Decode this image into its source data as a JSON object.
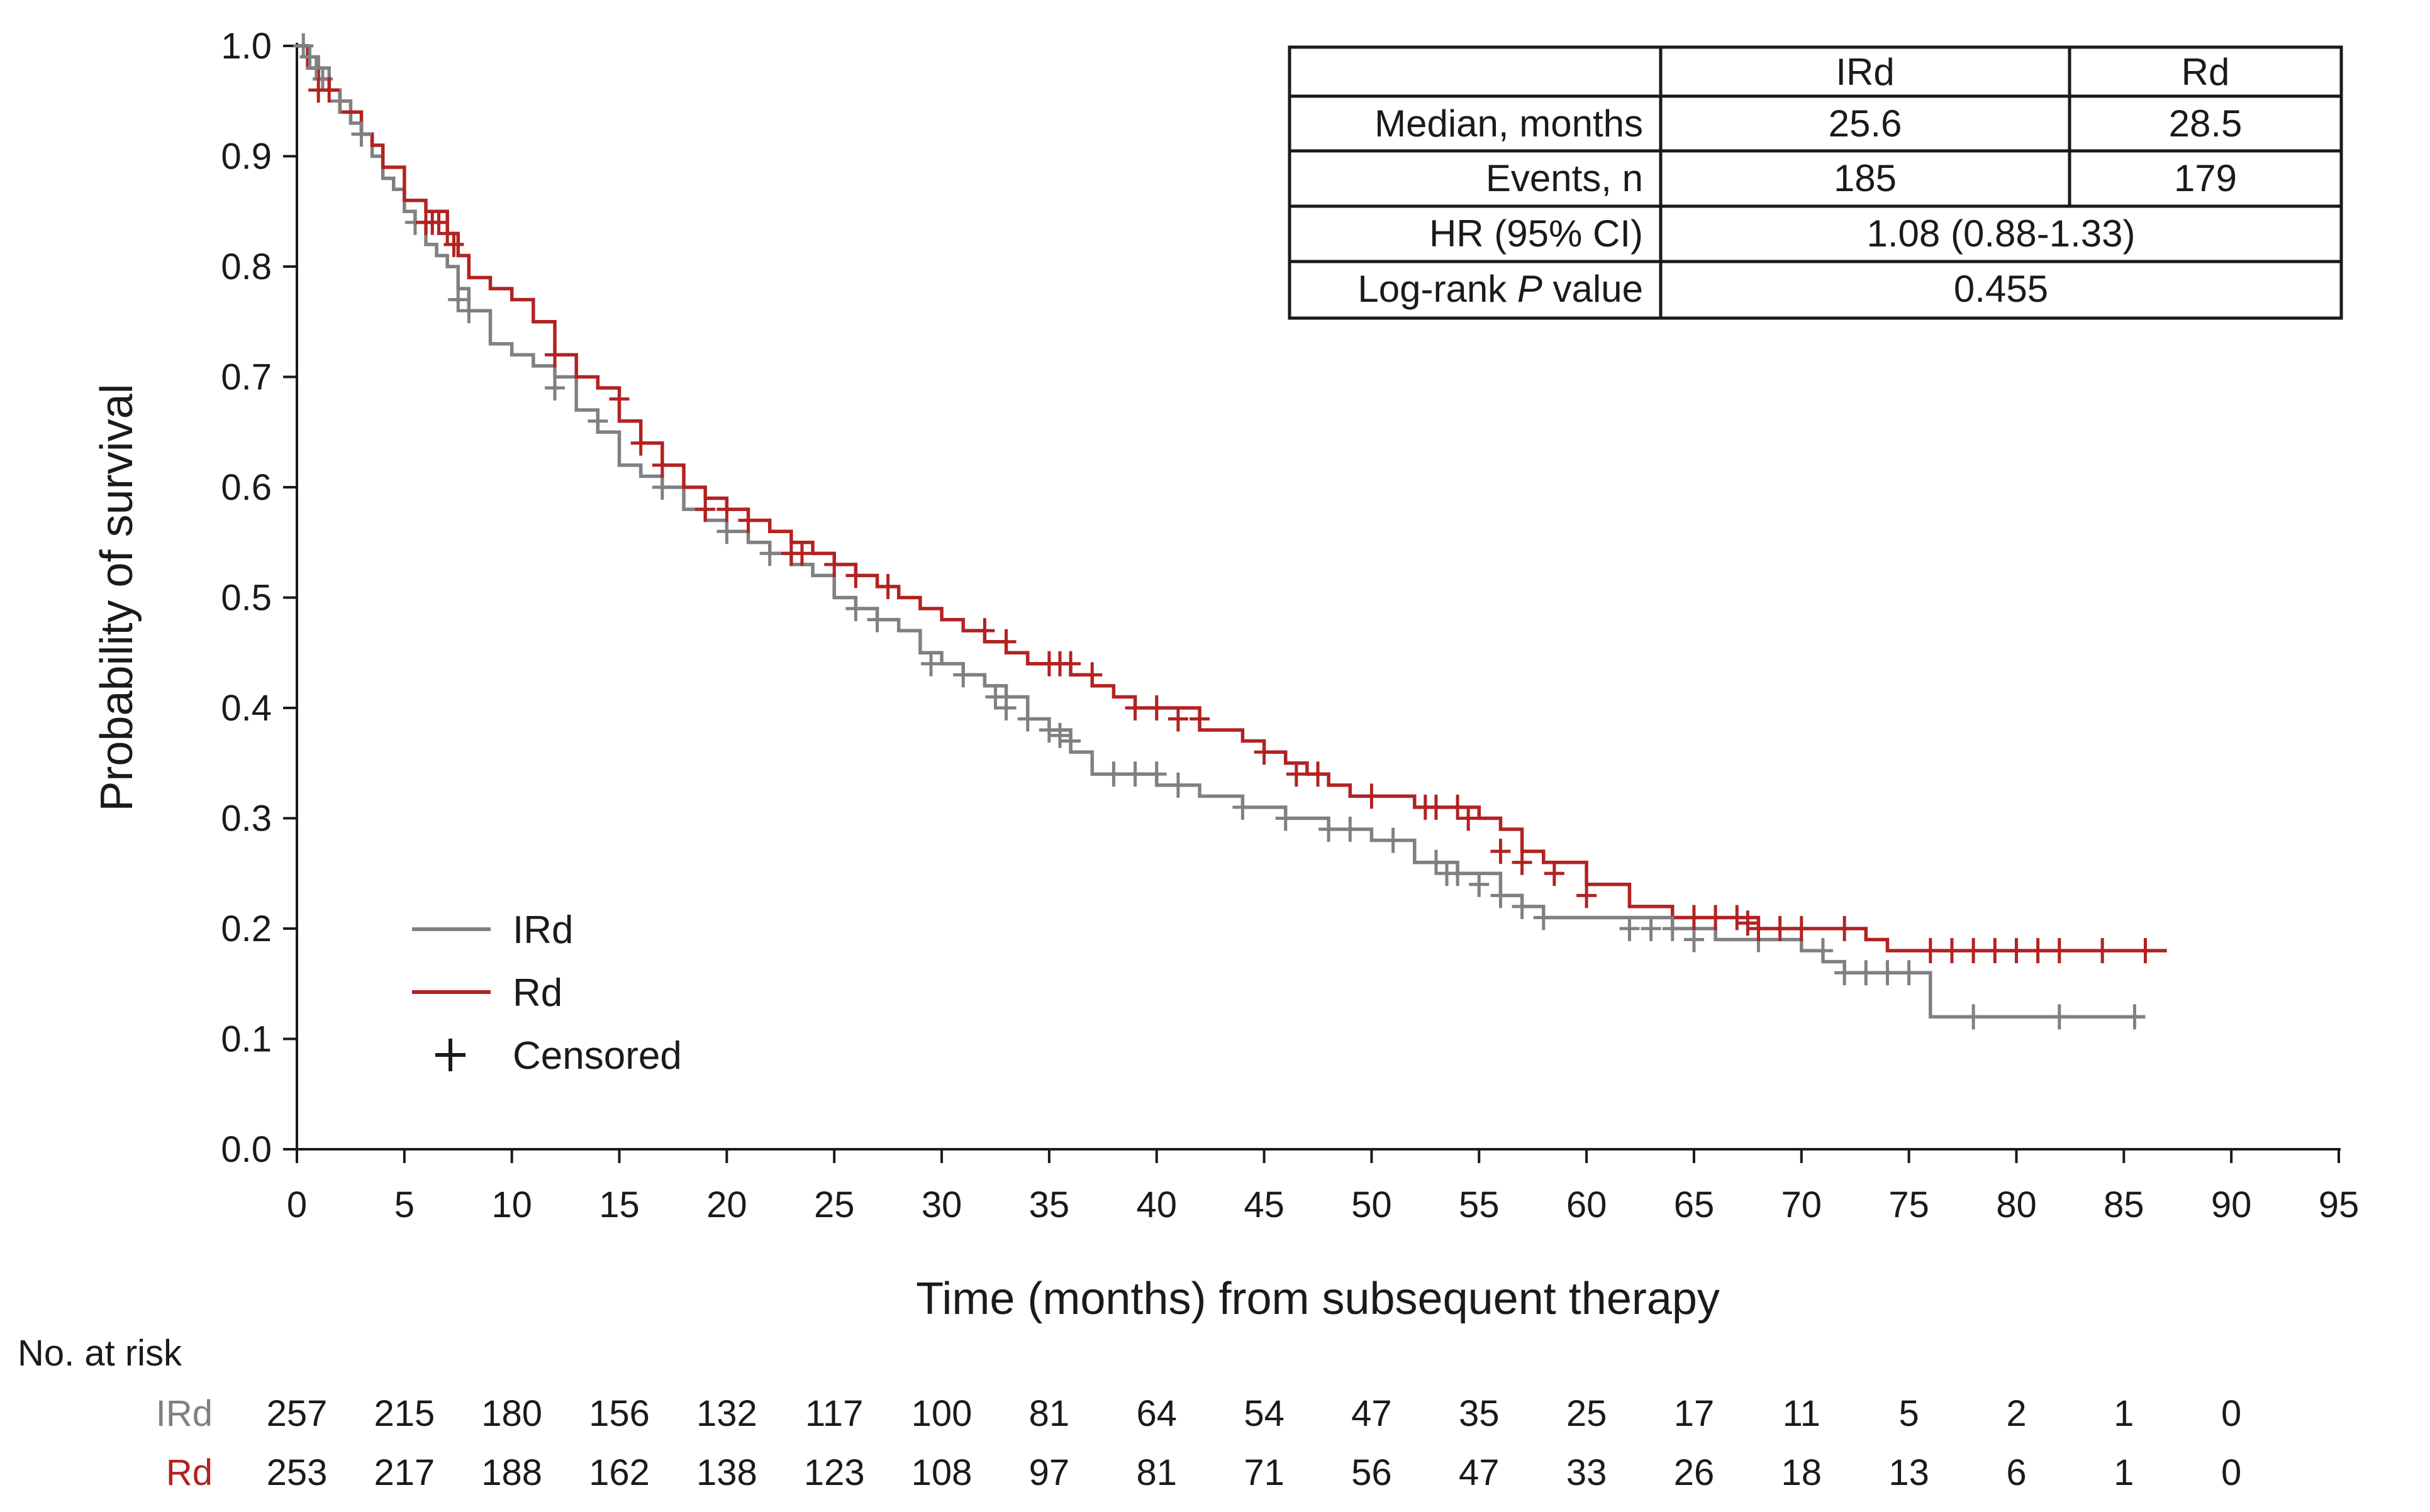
{
  "chart_data": {
    "type": "line",
    "subtype": "kaplan-meier",
    "xlabel": "Time (months) from subsequent therapy",
    "ylabel": "Probability of survival",
    "xlim": [
      0,
      95
    ],
    "ylim": [
      0,
      1
    ],
    "x_ticks": [
      "0",
      "5",
      "10",
      "15",
      "20",
      "25",
      "30",
      "35",
      "40",
      "45",
      "50",
      "55",
      "60",
      "65",
      "70",
      "75",
      "80",
      "85",
      "90",
      "95"
    ],
    "y_ticks": [
      "0.0",
      "0.1",
      "0.2",
      "0.3",
      "0.4",
      "0.5",
      "0.6",
      "0.7",
      "0.8",
      "0.9",
      "1.0"
    ],
    "legend": {
      "position": "bottom-left",
      "items": [
        {
          "label": "IRd",
          "kind": "line",
          "color": "#808080"
        },
        {
          "label": "Rd",
          "kind": "line",
          "color": "#b22222"
        },
        {
          "label": "Censored",
          "kind": "plus",
          "color": "#1a1a1a"
        }
      ]
    },
    "series": [
      {
        "name": "IRd",
        "color": "#808080",
        "steps": [
          [
            0,
            1.0
          ],
          [
            0.5,
            0.99
          ],
          [
            1,
            0.98
          ],
          [
            1.5,
            0.96
          ],
          [
            2,
            0.95
          ],
          [
            2.5,
            0.93
          ],
          [
            3,
            0.92
          ],
          [
            3.5,
            0.9
          ],
          [
            4,
            0.88
          ],
          [
            4.5,
            0.87
          ],
          [
            5,
            0.85
          ],
          [
            5.5,
            0.84
          ],
          [
            6,
            0.82
          ],
          [
            6.5,
            0.81
          ],
          [
            7,
            0.8
          ],
          [
            7.5,
            0.78
          ],
          [
            8,
            0.76
          ],
          [
            9,
            0.73
          ],
          [
            10,
            0.72
          ],
          [
            11,
            0.71
          ],
          [
            12,
            0.7
          ],
          [
            13,
            0.67
          ],
          [
            14,
            0.65
          ],
          [
            15,
            0.62
          ],
          [
            16,
            0.61
          ],
          [
            17,
            0.6
          ],
          [
            18,
            0.58
          ],
          [
            19,
            0.57
          ],
          [
            20,
            0.56
          ],
          [
            21,
            0.55
          ],
          [
            22,
            0.54
          ],
          [
            23,
            0.53
          ],
          [
            24,
            0.52
          ],
          [
            25,
            0.5
          ],
          [
            26,
            0.49
          ],
          [
            27,
            0.48
          ],
          [
            28,
            0.47
          ],
          [
            29,
            0.45
          ],
          [
            30,
            0.44
          ],
          [
            31,
            0.43
          ],
          [
            32,
            0.42
          ],
          [
            33,
            0.41
          ],
          [
            34,
            0.39
          ],
          [
            35,
            0.38
          ],
          [
            36,
            0.36
          ],
          [
            37,
            0.34
          ],
          [
            38,
            0.34
          ],
          [
            40,
            0.33
          ],
          [
            42,
            0.32
          ],
          [
            44,
            0.31
          ],
          [
            46,
            0.3
          ],
          [
            48,
            0.29
          ],
          [
            50,
            0.28
          ],
          [
            52,
            0.26
          ],
          [
            54,
            0.25
          ],
          [
            56,
            0.23
          ],
          [
            57,
            0.22
          ],
          [
            58,
            0.21
          ],
          [
            60,
            0.21
          ],
          [
            64,
            0.2
          ],
          [
            66,
            0.19
          ],
          [
            70,
            0.18
          ],
          [
            71,
            0.17
          ],
          [
            72,
            0.16
          ],
          [
            75,
            0.16
          ],
          [
            76,
            0.12
          ],
          [
            86,
            0.12
          ]
        ],
        "censored": [
          [
            0.3,
            1.0
          ],
          [
            0.6,
            0.99
          ],
          [
            0.9,
            0.98
          ],
          [
            1.2,
            0.97
          ],
          [
            2,
            0.95
          ],
          [
            3,
            0.92
          ],
          [
            5.5,
            0.84
          ],
          [
            7.5,
            0.77
          ],
          [
            8,
            0.76
          ],
          [
            12,
            0.69
          ],
          [
            14,
            0.66
          ],
          [
            17,
            0.6
          ],
          [
            20,
            0.56
          ],
          [
            22,
            0.54
          ],
          [
            26,
            0.49
          ],
          [
            27,
            0.48
          ],
          [
            29.5,
            0.44
          ],
          [
            31,
            0.43
          ],
          [
            32.5,
            0.41
          ],
          [
            33,
            0.4
          ],
          [
            34,
            0.39
          ],
          [
            35,
            0.38
          ],
          [
            35.5,
            0.375
          ],
          [
            36,
            0.37
          ],
          [
            38,
            0.34
          ],
          [
            39,
            0.34
          ],
          [
            40,
            0.34
          ],
          [
            41,
            0.33
          ],
          [
            44,
            0.31
          ],
          [
            46,
            0.3
          ],
          [
            48,
            0.29
          ],
          [
            49,
            0.29
          ],
          [
            51,
            0.28
          ],
          [
            53,
            0.26
          ],
          [
            53.5,
            0.25
          ],
          [
            54,
            0.25
          ],
          [
            55,
            0.24
          ],
          [
            56,
            0.23
          ],
          [
            57,
            0.22
          ],
          [
            58,
            0.21
          ],
          [
            62,
            0.2
          ],
          [
            63,
            0.2
          ],
          [
            64,
            0.2
          ],
          [
            65,
            0.19
          ],
          [
            68,
            0.19
          ],
          [
            71,
            0.18
          ],
          [
            72,
            0.16
          ],
          [
            73,
            0.16
          ],
          [
            74,
            0.16
          ],
          [
            75,
            0.16
          ],
          [
            78,
            0.12
          ],
          [
            82,
            0.12
          ],
          [
            85.5,
            0.12
          ]
        ]
      },
      {
        "name": "Rd",
        "color": "#b22222",
        "steps": [
          [
            0,
            1.0
          ],
          [
            0.5,
            0.98
          ],
          [
            1,
            0.97
          ],
          [
            1.5,
            0.96
          ],
          [
            2,
            0.94
          ],
          [
            3,
            0.92
          ],
          [
            3.5,
            0.91
          ],
          [
            4,
            0.89
          ],
          [
            5,
            0.86
          ],
          [
            6,
            0.85
          ],
          [
            7,
            0.83
          ],
          [
            7.5,
            0.81
          ],
          [
            8,
            0.79
          ],
          [
            9,
            0.78
          ],
          [
            10,
            0.77
          ],
          [
            11,
            0.75
          ],
          [
            12,
            0.72
          ],
          [
            13,
            0.7
          ],
          [
            14,
            0.69
          ],
          [
            15,
            0.66
          ],
          [
            16,
            0.64
          ],
          [
            17,
            0.62
          ],
          [
            18,
            0.6
          ],
          [
            19,
            0.59
          ],
          [
            20,
            0.58
          ],
          [
            21,
            0.57
          ],
          [
            22,
            0.56
          ],
          [
            23,
            0.55
          ],
          [
            24,
            0.54
          ],
          [
            25,
            0.53
          ],
          [
            26,
            0.52
          ],
          [
            27,
            0.51
          ],
          [
            28,
            0.5
          ],
          [
            29,
            0.49
          ],
          [
            30,
            0.48
          ],
          [
            31,
            0.47
          ],
          [
            32,
            0.46
          ],
          [
            33,
            0.45
          ],
          [
            34,
            0.44
          ],
          [
            35,
            0.44
          ],
          [
            36,
            0.43
          ],
          [
            37,
            0.42
          ],
          [
            38,
            0.41
          ],
          [
            39,
            0.4
          ],
          [
            40,
            0.4
          ],
          [
            42,
            0.38
          ],
          [
            43,
            0.38
          ],
          [
            44,
            0.37
          ],
          [
            45,
            0.36
          ],
          [
            46,
            0.35
          ],
          [
            47,
            0.34
          ],
          [
            48,
            0.33
          ],
          [
            49,
            0.32
          ],
          [
            50,
            0.32
          ],
          [
            52,
            0.31
          ],
          [
            54,
            0.31
          ],
          [
            55,
            0.3
          ],
          [
            56,
            0.29
          ],
          [
            57,
            0.27
          ],
          [
            58,
            0.26
          ],
          [
            60,
            0.24
          ],
          [
            62,
            0.22
          ],
          [
            64,
            0.21
          ],
          [
            66,
            0.21
          ],
          [
            68,
            0.2
          ],
          [
            72,
            0.2
          ],
          [
            73,
            0.19
          ],
          [
            74,
            0.18
          ],
          [
            87,
            0.18
          ]
        ],
        "censored": [
          [
            1,
            0.96
          ],
          [
            1.5,
            0.96
          ],
          [
            6,
            0.84
          ],
          [
            6.3,
            0.84
          ],
          [
            6.6,
            0.84
          ],
          [
            7,
            0.83
          ],
          [
            7.3,
            0.82
          ],
          [
            12,
            0.72
          ],
          [
            15,
            0.68
          ],
          [
            16,
            0.64
          ],
          [
            17,
            0.62
          ],
          [
            19,
            0.58
          ],
          [
            20,
            0.58
          ],
          [
            21,
            0.57
          ],
          [
            23,
            0.54
          ],
          [
            23.5,
            0.54
          ],
          [
            25,
            0.53
          ],
          [
            26,
            0.52
          ],
          [
            27.5,
            0.51
          ],
          [
            32,
            0.47
          ],
          [
            33,
            0.46
          ],
          [
            35,
            0.44
          ],
          [
            35.5,
            0.44
          ],
          [
            36,
            0.44
          ],
          [
            37,
            0.43
          ],
          [
            39,
            0.4
          ],
          [
            40,
            0.4
          ],
          [
            41,
            0.39
          ],
          [
            42,
            0.39
          ],
          [
            45,
            0.36
          ],
          [
            46.5,
            0.34
          ],
          [
            47.5,
            0.34
          ],
          [
            50,
            0.32
          ],
          [
            52.5,
            0.31
          ],
          [
            53,
            0.31
          ],
          [
            54,
            0.31
          ],
          [
            54.5,
            0.3
          ],
          [
            56,
            0.27
          ],
          [
            57,
            0.26
          ],
          [
            58.5,
            0.25
          ],
          [
            60,
            0.23
          ],
          [
            65,
            0.21
          ],
          [
            66,
            0.21
          ],
          [
            67,
            0.21
          ],
          [
            67.5,
            0.205
          ],
          [
            68,
            0.2
          ],
          [
            69,
            0.2
          ],
          [
            70,
            0.2
          ],
          [
            72,
            0.2
          ],
          [
            76,
            0.18
          ],
          [
            77,
            0.18
          ],
          [
            78,
            0.18
          ],
          [
            79,
            0.18
          ],
          [
            80,
            0.18
          ],
          [
            81,
            0.18
          ],
          [
            82,
            0.18
          ],
          [
            84,
            0.18
          ],
          [
            86,
            0.18
          ]
        ]
      }
    ],
    "stats_table": {
      "headers": [
        "",
        "IRd",
        "Rd"
      ],
      "header_colors": [
        "#1a1a1a",
        "#808080",
        "#b22222"
      ],
      "rows": [
        {
          "label": "Median, months",
          "irdval": "25.6",
          "rdval": "28.5"
        },
        {
          "label": "Events, n",
          "irdval": "185",
          "rdval": "179"
        },
        {
          "label": "HR (95% CI)",
          "merged": "1.08 (0.88-1.33)"
        },
        {
          "label_pre": "Log-rank ",
          "label_italic": "P",
          "label_post": " value",
          "merged": "0.455"
        }
      ]
    },
    "risk_table": {
      "title": "No. at risk",
      "times": [
        0,
        5,
        10,
        15,
        20,
        25,
        30,
        35,
        40,
        45,
        50,
        55,
        60,
        65,
        70,
        75,
        80,
        85,
        90
      ],
      "rows": [
        {
          "name": "IRd",
          "color": "#808080",
          "counts": [
            "257",
            "215",
            "180",
            "156",
            "132",
            "117",
            "100",
            "81",
            "64",
            "54",
            "47",
            "35",
            "25",
            "17",
            "11",
            "5",
            "2",
            "1",
            "0"
          ]
        },
        {
          "name": "Rd",
          "color": "#b22222",
          "counts": [
            "253",
            "217",
            "188",
            "162",
            "138",
            "123",
            "108",
            "97",
            "81",
            "71",
            "56",
            "47",
            "33",
            "26",
            "18",
            "13",
            "6",
            "1",
            "0"
          ]
        }
      ]
    }
  }
}
